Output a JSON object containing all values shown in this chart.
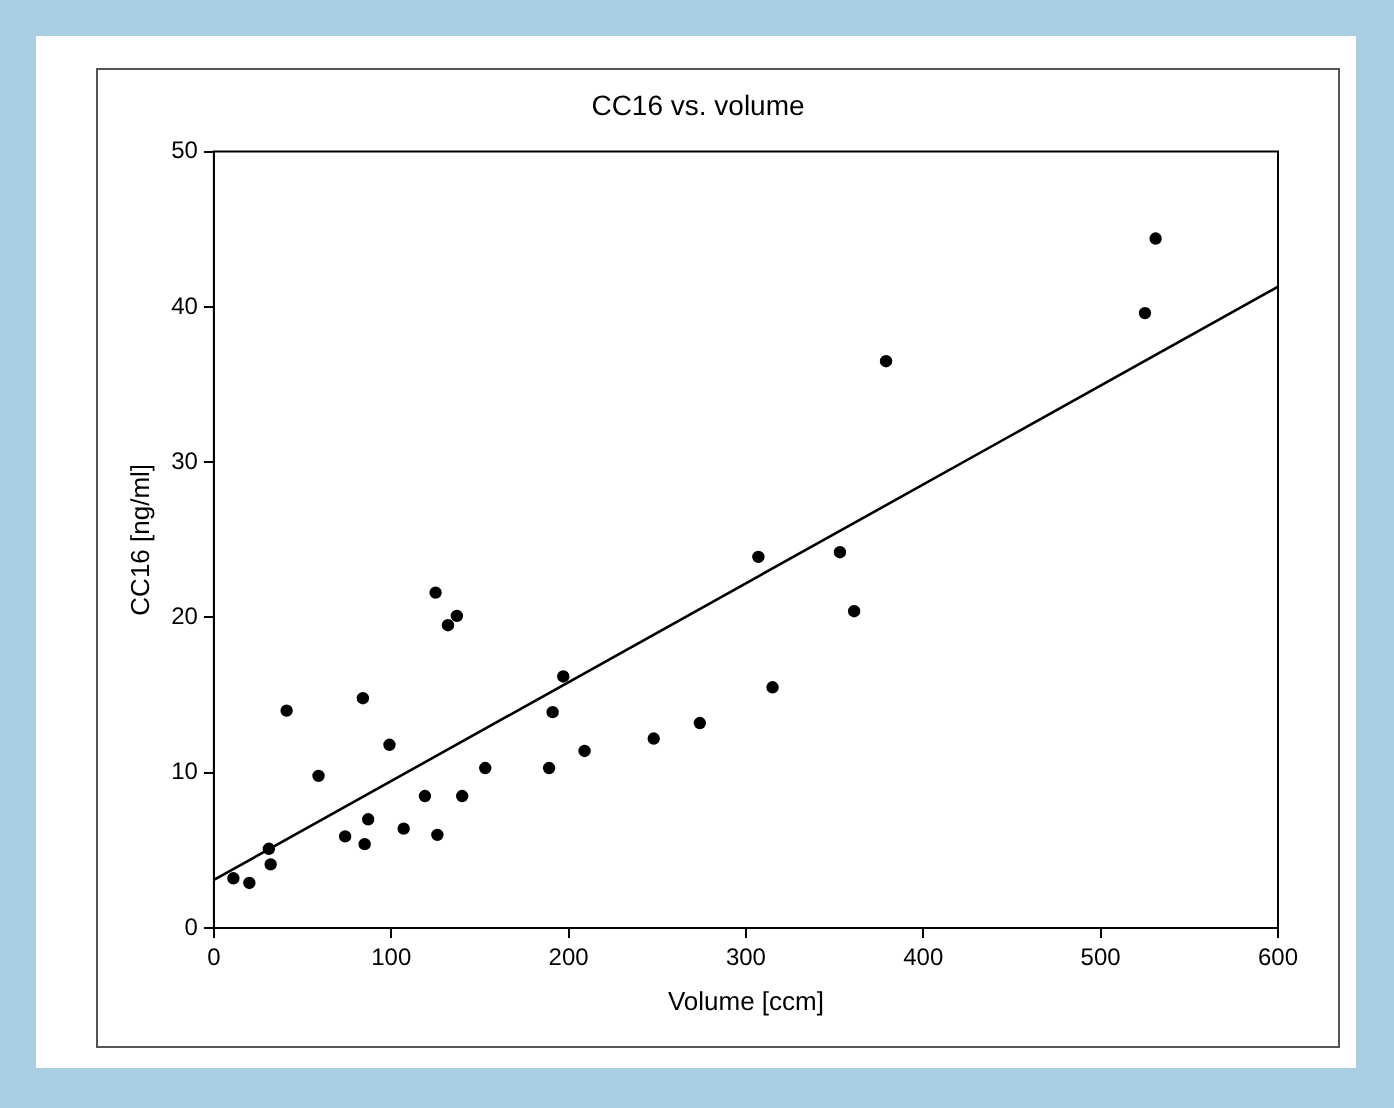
{
  "chart_data": {
    "type": "scatter",
    "title": "CC16 vs. volume",
    "xlabel": "Volume [ccm]",
    "ylabel": "CC16 [ng/ml]",
    "xlim": [
      0,
      600
    ],
    "xticks": [
      0,
      100,
      200,
      300,
      400,
      500,
      600
    ],
    "ylim": [
      0,
      50
    ],
    "yticks": [
      0,
      10,
      20,
      30,
      40,
      50
    ],
    "grid": false,
    "legend": false,
    "series": [
      {
        "marker": "circle",
        "color": "#000000",
        "x": [
          11,
          20,
          31,
          32,
          41,
          59,
          74,
          84,
          85,
          87,
          99,
          107,
          119,
          125,
          126,
          132,
          137,
          140,
          153,
          189,
          191,
          197,
          209,
          248,
          274,
          307,
          315,
          353,
          361,
          379,
          525,
          531
        ],
        "values": [
          3.2,
          2.9,
          5.1,
          4.1,
          14.0,
          9.8,
          5.9,
          14.8,
          5.4,
          7.0,
          11.8,
          6.4,
          8.5,
          21.6,
          6.0,
          19.5,
          20.1,
          8.5,
          10.3,
          10.3,
          13.9,
          16.2,
          11.4,
          12.2,
          13.2,
          23.9,
          15.5,
          24.2,
          20.4,
          36.5,
          39.6,
          44.4
        ]
      },
      {
        "type": "line",
        "color": "#000000",
        "x": [
          0,
          600
        ],
        "values": [
          3.1,
          41.3
        ]
      }
    ]
  }
}
